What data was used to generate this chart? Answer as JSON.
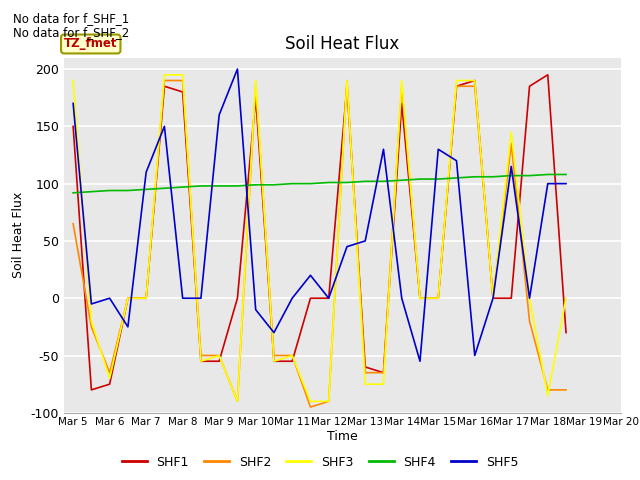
{
  "title": "Soil Heat Flux",
  "ylabel": "Soil Heat Flux",
  "xlabel": "Time",
  "annotations": [
    "No data for f_SHF_1",
    "No data for f_SHF_2"
  ],
  "annotation_box": "TZ_fmet",
  "ylim": [
    -100,
    210
  ],
  "background_color": "#e8e8e8",
  "grid_color": "white",
  "series_colors": {
    "SHF1": "#cc0000",
    "SHF2": "#ff8800",
    "SHF3": "#ffff00",
    "SHF4": "#00bb00",
    "SHF5": "#0000cc"
  },
  "xtick_positions": [
    0,
    2,
    4,
    6,
    8,
    10,
    12,
    14,
    16,
    18,
    20,
    22,
    24,
    26,
    28,
    30
  ],
  "xtick_labels": [
    "Mar 5",
    "Mar 6",
    "Mar 7",
    "Mar 8",
    "Mar 9",
    "Mar 10",
    "Mar 11",
    "Mar 12",
    "Mar 13",
    "Mar 14",
    "Mar 15",
    "Mar 16",
    "Mar 17",
    "Mar 18",
    "Mar 19",
    "Mar 20"
  ],
  "ytick_labels": [
    -100,
    -50,
    0,
    50,
    100,
    150,
    200
  ],
  "SHF1": [
    150,
    -80,
    -75,
    0,
    0,
    185,
    180,
    -55,
    -55,
    0,
    175,
    -55,
    -55,
    0,
    0,
    185,
    -60,
    -65,
    170,
    0,
    0,
    185,
    190,
    0,
    0,
    185,
    195,
    -30
  ],
  "SHF2": [
    65,
    -25,
    -65,
    0,
    0,
    190,
    190,
    -50,
    -50,
    -90,
    185,
    -50,
    -50,
    -95,
    -90,
    190,
    -65,
    -65,
    185,
    0,
    0,
    185,
    185,
    0,
    135,
    -20,
    -80,
    -80
  ],
  "SHF3": [
    190,
    -20,
    -70,
    0,
    0,
    195,
    195,
    -55,
    -50,
    -90,
    190,
    -55,
    -50,
    -90,
    -90,
    190,
    -75,
    -75,
    190,
    0,
    0,
    190,
    190,
    0,
    145,
    0,
    -85,
    0
  ],
  "SHF4": [
    92,
    93,
    94,
    94,
    95,
    96,
    97,
    98,
    98,
    98,
    99,
    99,
    100,
    100,
    101,
    101,
    102,
    102,
    103,
    104,
    104,
    105,
    106,
    106,
    107,
    107,
    108,
    108
  ],
  "SHF5": [
    170,
    -5,
    0,
    -25,
    110,
    150,
    0,
    0,
    160,
    200,
    -10,
    -30,
    0,
    20,
    0,
    45,
    50,
    130,
    0,
    -55,
    130,
    120,
    -50,
    0,
    115,
    0,
    100,
    100
  ]
}
